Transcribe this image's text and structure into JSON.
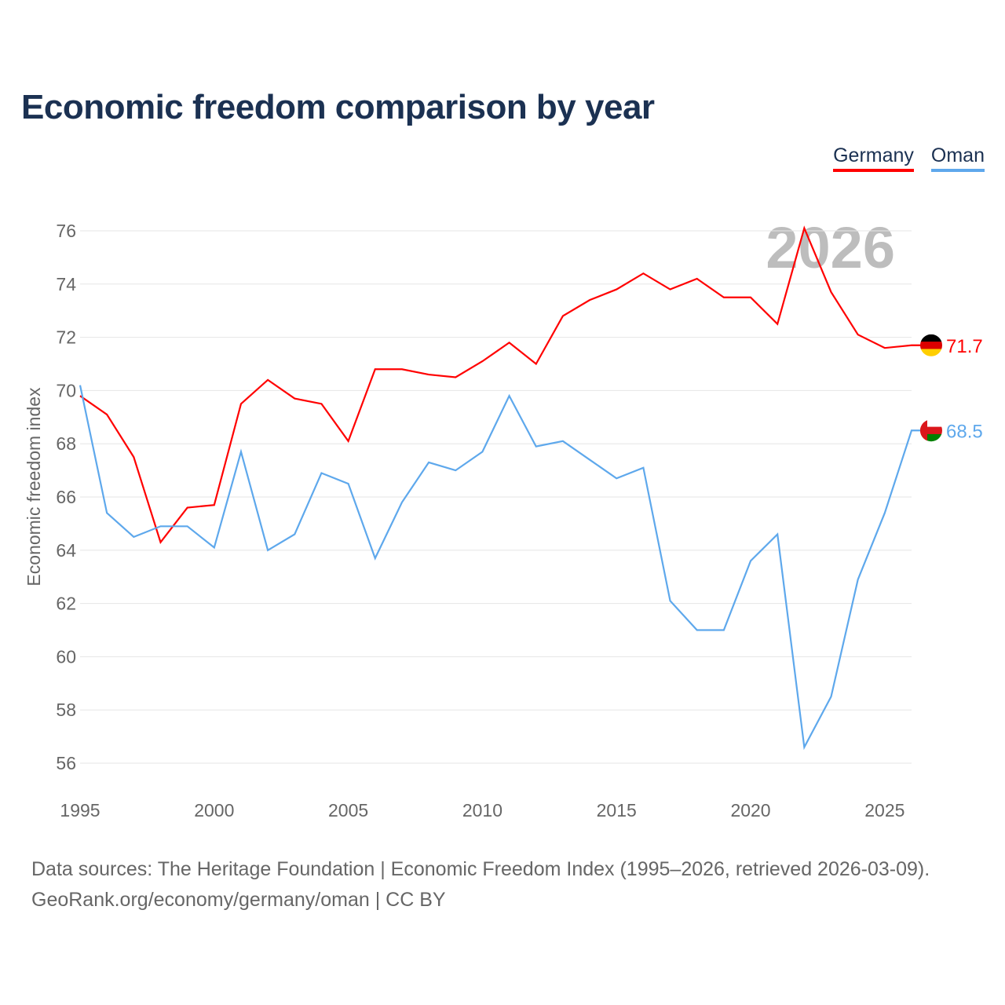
{
  "title": "Economic freedom comparison by year",
  "footer": {
    "line1": "Data sources: The Heritage Foundation | Economic Freedom Index (1995–2026, retrieved 2026-03-09).",
    "line2": "GeoRank.org/economy/germany/oman | CC BY"
  },
  "chart_data": {
    "type": "line",
    "title": "Economic freedom comparison by year",
    "xlabel": "",
    "ylabel": "Economic freedom index",
    "year_label": "2026",
    "x": [
      1995,
      1996,
      1997,
      1998,
      1999,
      2000,
      2001,
      2002,
      2003,
      2004,
      2005,
      2006,
      2007,
      2008,
      2009,
      2010,
      2011,
      2012,
      2013,
      2014,
      2015,
      2016,
      2017,
      2018,
      2019,
      2020,
      2021,
      2022,
      2023,
      2024,
      2025,
      2026
    ],
    "xticks": [
      1995,
      2000,
      2005,
      2010,
      2015,
      2020,
      2025
    ],
    "yticks": [
      56,
      58,
      60,
      62,
      64,
      66,
      68,
      70,
      72,
      74,
      76
    ],
    "xlim": [
      1995,
      2026
    ],
    "ylim": [
      56,
      76
    ],
    "grid": true,
    "legend_position": "top-right",
    "series": [
      {
        "name": "Germany",
        "color": "#ff0000",
        "end_label": "71.7",
        "values": [
          69.8,
          69.1,
          67.5,
          64.3,
          65.6,
          65.7,
          69.5,
          70.4,
          69.7,
          69.5,
          68.1,
          70.8,
          70.8,
          70.6,
          70.5,
          71.1,
          71.8,
          71.0,
          72.8,
          73.4,
          73.8,
          74.4,
          73.8,
          74.2,
          73.5,
          73.5,
          72.5,
          76.1,
          73.7,
          72.1,
          71.6,
          71.7
        ]
      },
      {
        "name": "Oman",
        "color": "#5ea8ec",
        "end_label": "68.5",
        "values": [
          70.2,
          65.4,
          64.5,
          64.9,
          64.9,
          64.1,
          67.7,
          64.0,
          64.6,
          66.9,
          66.5,
          63.7,
          65.8,
          67.3,
          67.0,
          67.7,
          69.8,
          67.9,
          68.1,
          67.4,
          66.7,
          67.1,
          62.1,
          61.0,
          61.0,
          63.6,
          64.6,
          56.6,
          58.5,
          62.9,
          65.4,
          68.5
        ]
      }
    ]
  }
}
